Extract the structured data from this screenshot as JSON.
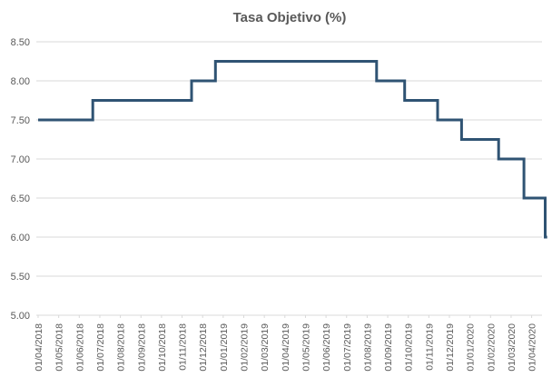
{
  "colors": {
    "line": "#2F5373",
    "grid": "#D9D9D9",
    "axis_text": "#595959",
    "title_text": "#595959",
    "background": "#FFFFFF"
  },
  "chart_data": {
    "type": "line",
    "step": true,
    "title": "Tasa Objetivo (%)",
    "xlabel": "",
    "ylabel": "",
    "ylim": [
      5.0,
      8.5
    ],
    "y_tick_interval": 0.5,
    "grid": "horizontal-only",
    "legend_position": "none",
    "markers": "none",
    "y_tick_labels": [
      "8.50",
      "8.00",
      "7.50",
      "7.00",
      "6.50",
      "6.00",
      "5.50",
      "5.00"
    ],
    "x_tick_labels": [
      "01/04/2018",
      "01/05/2018",
      "01/06/2018",
      "01/07/2018",
      "01/08/2018",
      "01/09/2018",
      "01/10/2018",
      "01/11/2018",
      "01/12/2018",
      "01/01/2019",
      "01/02/2019",
      "01/03/2019",
      "01/04/2019",
      "01/05/2019",
      "01/06/2019",
      "01/07/2019",
      "01/08/2019",
      "01/09/2019",
      "01/10/2019",
      "01/11/2019",
      "01/12/2019",
      "01/01/2020",
      "01/02/2020",
      "01/03/2020",
      "01/04/2020"
    ],
    "x_tick_label_rotation_deg": -90,
    "series": [
      {
        "name": "Tasa Objetivo",
        "step_points": [
          [
            "2018-04-01",
            7.5
          ],
          [
            "2018-06-21",
            7.75
          ],
          [
            "2018-11-15",
            8.0
          ],
          [
            "2018-12-20",
            8.25
          ],
          [
            "2019-08-15",
            8.0
          ],
          [
            "2019-09-26",
            7.75
          ],
          [
            "2019-11-14",
            7.5
          ],
          [
            "2019-12-19",
            7.25
          ],
          [
            "2020-02-13",
            7.0
          ],
          [
            "2020-03-20",
            6.5
          ],
          [
            "2020-04-21",
            6.0
          ],
          [
            "2020-04-24",
            6.0
          ]
        ]
      }
    ]
  }
}
